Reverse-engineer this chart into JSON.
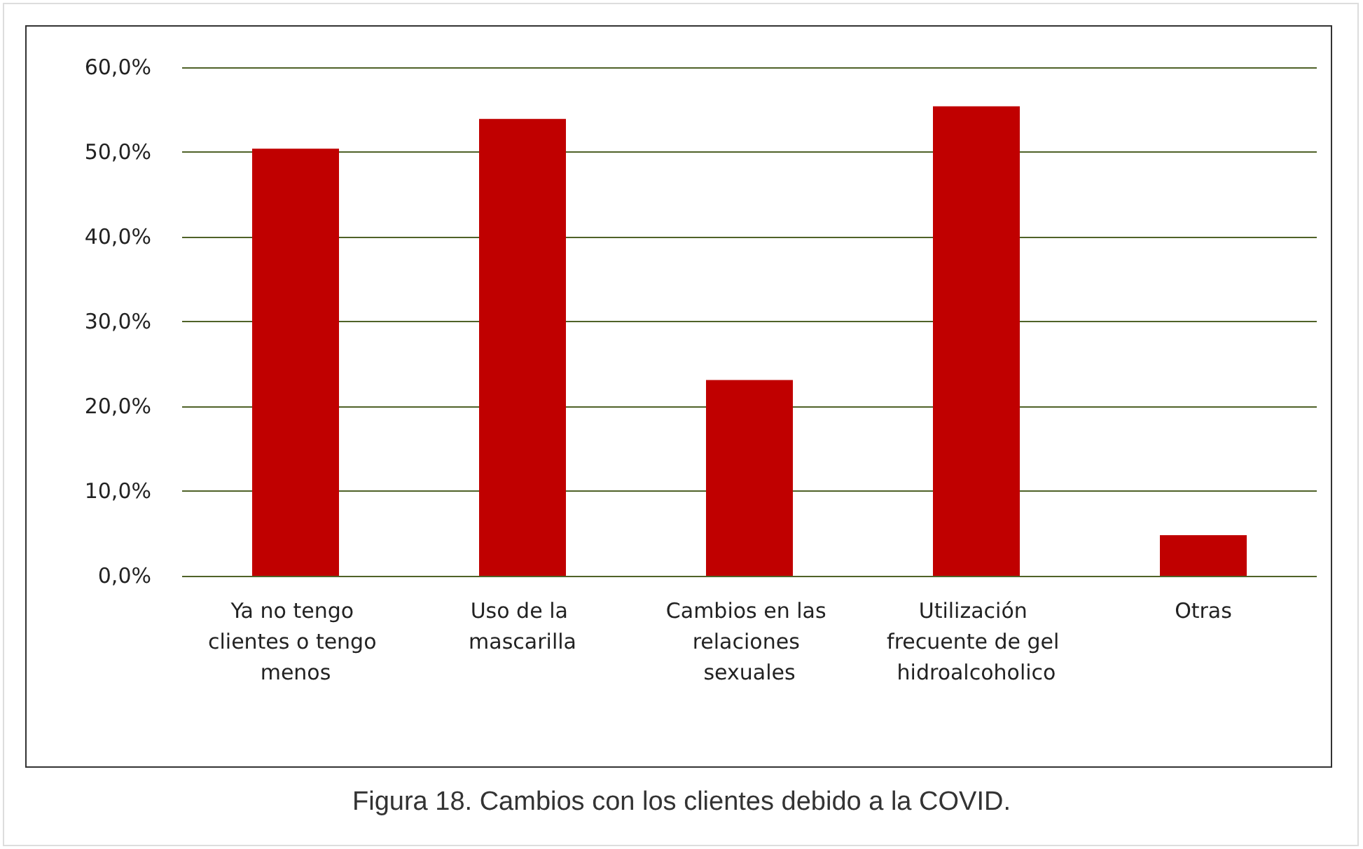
{
  "chart_data": {
    "type": "bar",
    "title": "Figura 18. Cambios con los clientes debido a la COVID.",
    "categories": [
      "Ya no tengo clientes o tengo menos",
      "Uso de la mascarilla",
      "Cambios en las relaciones sexuales",
      "Utilización frecuente de gel hidroalcoholico",
      "Otras"
    ],
    "values": [
      50.4,
      53.9,
      23.1,
      55.4,
      4.8
    ],
    "color": "#c00000",
    "ylim": [
      0,
      60
    ],
    "yticks": [
      {
        "value": 0,
        "label": "0,0%"
      },
      {
        "value": 10,
        "label": "10,0%"
      },
      {
        "value": 20,
        "label": "20,0%"
      },
      {
        "value": 30,
        "label": "30,0%"
      },
      {
        "value": 40,
        "label": "40,0%"
      },
      {
        "value": 50,
        "label": "50,0%"
      },
      {
        "value": 60,
        "label": "60,0%"
      }
    ],
    "grid": "y"
  }
}
